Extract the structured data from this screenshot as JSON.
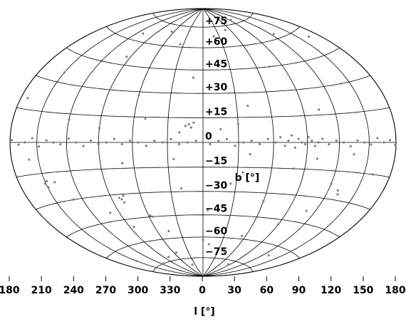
{
  "chart_data": {
    "type": "scatter",
    "xlabel": "l [°]",
    "ylabel": "b [°]",
    "xlim": [
      -180,
      180
    ],
    "ylim": [
      -90,
      90
    ],
    "xticks": [
      {
        "value": -180,
        "label": "180"
      },
      {
        "value": -150,
        "label": "210"
      },
      {
        "value": -120,
        "label": "240"
      },
      {
        "value": -90,
        "label": "270"
      },
      {
        "value": -60,
        "label": "300"
      },
      {
        "value": -30,
        "label": "330"
      },
      0,
      30,
      60,
      90,
      120,
      150,
      180
    ],
    "yticks": [
      {
        "value": 75,
        "label": "+75"
      },
      {
        "value": 60,
        "label": "+60"
      },
      {
        "value": 45,
        "label": "+45"
      },
      {
        "value": 30,
        "label": "+30"
      },
      {
        "value": 15,
        "label": "+15"
      },
      0,
      {
        "value": -15,
        "label": "−15"
      },
      {
        "value": -30,
        "label": "−30"
      },
      {
        "value": -45,
        "label": "−45"
      },
      {
        "value": -60,
        "label": "−60"
      },
      {
        "value": -75,
        "label": "−75"
      }
    ],
    "grid": true,
    "series": [
      {
        "color": "#808080",
        "x": [
          -178,
          -170,
          -163,
          -155,
          -148,
          -140,
          -133,
          -126,
          -118,
          -111,
          -104,
          -97,
          -90,
          -83,
          -76,
          -69,
          -62,
          -55,
          -48,
          -41,
          -34,
          -27,
          -20,
          -13,
          -6,
          0,
          6,
          13,
          20,
          27,
          34,
          41,
          48,
          55,
          62,
          66,
          70,
          73,
          76,
          79,
          82,
          85,
          88,
          91,
          94,
          97,
          100,
          104,
          110,
          117,
          124,
          131,
          138,
          145,
          152,
          159,
          166,
          173,
          179,
          -172,
          -150,
          -120,
          -95,
          -60,
          -35,
          -10,
          15,
          40,
          75,
          105,
          140,
          165,
          -140,
          -100,
          -70,
          -45,
          -20,
          10,
          35,
          60,
          90,
          120,
          150,
          -160,
          -130,
          -85,
          -55,
          -25,
          5,
          25,
          55,
          80,
          110,
          135,
          -110,
          -65,
          -30,
          20,
          50,
          95,
          125,
          -150,
          -115,
          -80,
          -40,
          0,
          45,
          85,
          130,
          -90,
          -20,
          40,
          100,
          -50,
          30,
          -151,
          -149,
          -148,
          -82,
          -80,
          -79,
          -77,
          -58,
          -56,
          -15,
          -12,
          -10,
          -8,
          130,
          132,
          160
        ],
        "y": [
          1,
          -1,
          0,
          2,
          -2,
          1,
          0,
          -1,
          2,
          0,
          -2,
          1,
          -1,
          0,
          2,
          -1,
          1,
          0,
          -2,
          1,
          0,
          2,
          -1,
          0,
          1,
          0,
          -1,
          1,
          2,
          -2,
          0,
          1,
          -1,
          2,
          0,
          3,
          -2,
          1,
          4,
          -3,
          2,
          0,
          -1,
          3,
          1,
          -2,
          0,
          2,
          -1,
          1,
          0,
          -2,
          1,
          0,
          -1,
          2,
          0,
          1,
          -1,
          20,
          35,
          12,
          50,
          28,
          62,
          40,
          8,
          22,
          45,
          18,
          30,
          55,
          -20,
          -40,
          -12,
          -55,
          -28,
          -65,
          -18,
          -35,
          -48,
          -22,
          -60,
          -8,
          -30,
          -50,
          -70,
          -10,
          -42,
          -25,
          -58,
          -15,
          -38,
          -6,
          65,
          70,
          75,
          68,
          72,
          78,
          63,
          -68,
          -75,
          -72,
          -80,
          -62,
          -70,
          -78,
          -66,
          8,
          6,
          -7,
          -9,
          14,
          11,
          -20,
          -22,
          -19,
          -32,
          -33,
          -35,
          -31,
          -44,
          -45,
          10,
          11,
          9,
          12,
          -25,
          -27,
          -15
        ]
      }
    ]
  }
}
